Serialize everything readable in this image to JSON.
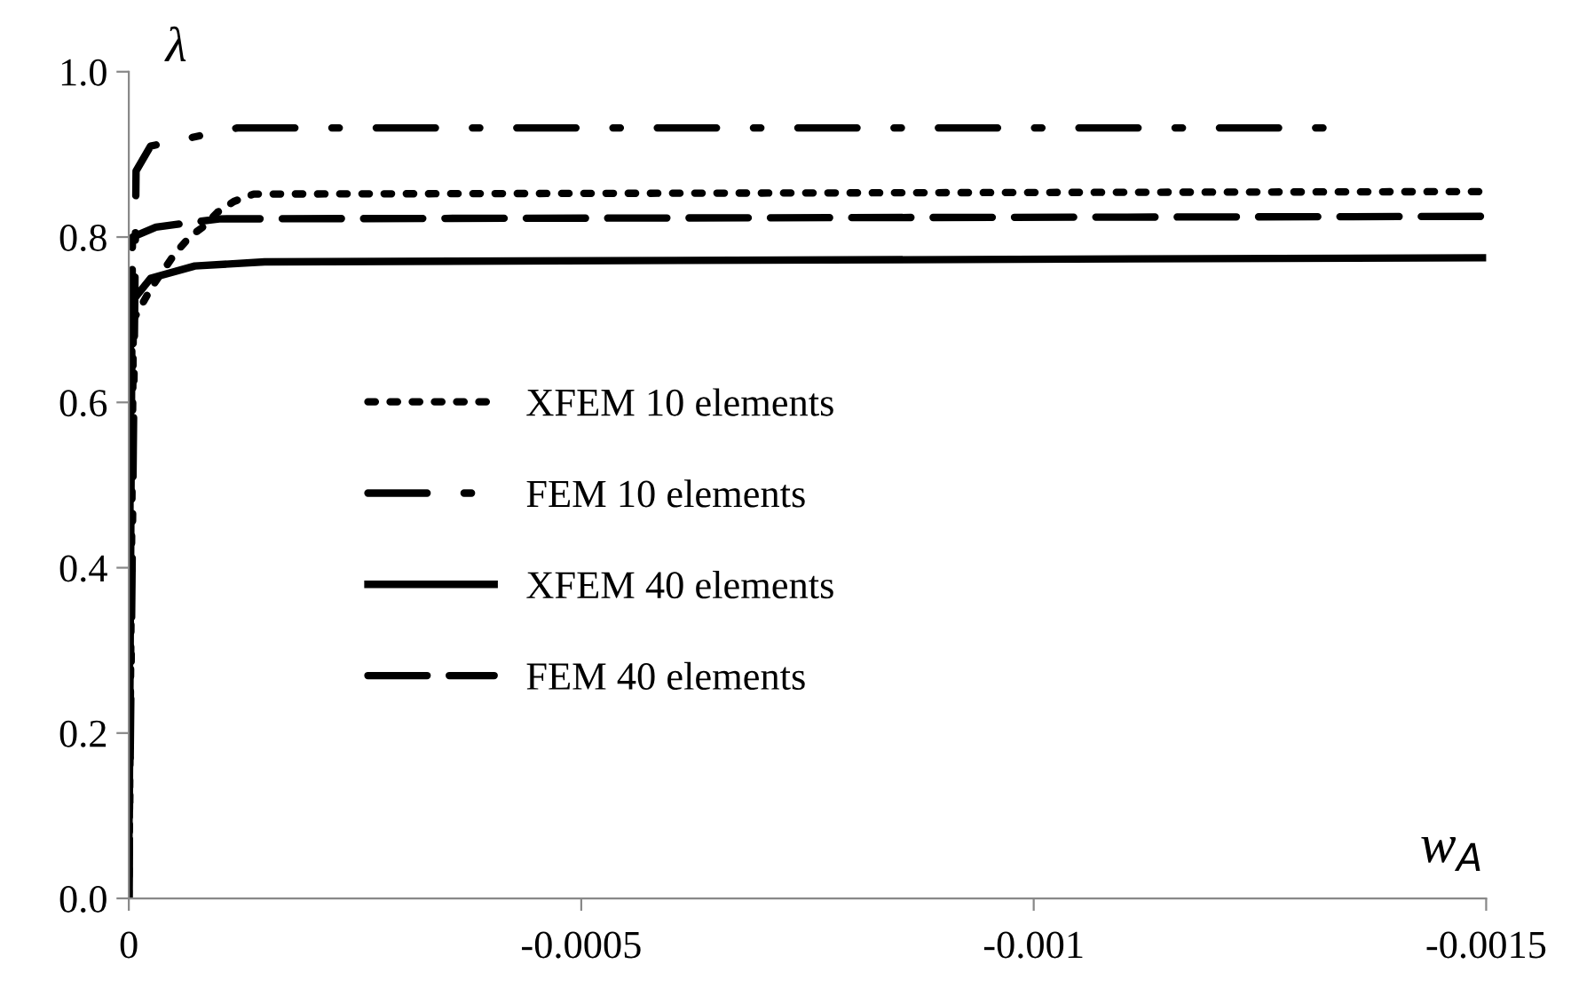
{
  "chart_data": {
    "type": "line",
    "xlabel": "w$_{A}$",
    "ylabel": "λ",
    "xlim": [
      0,
      -0.0015
    ],
    "xticks": [
      0,
      -0.0005,
      -0.001,
      -0.0015
    ],
    "ylim": [
      0,
      1.0
    ],
    "yticks": [
      {
        "value": 0,
        "label": "0.0"
      },
      {
        "value": 0.2,
        "label": "0.2"
      },
      {
        "value": 0.4,
        "label": "0.4"
      },
      {
        "value": 0.6,
        "label": "0.6"
      },
      {
        "value": 0.8,
        "label": "0.8"
      },
      {
        "value": 1.0,
        "label": "1.0"
      }
    ],
    "grid": false,
    "legend": "left",
    "marker": "none",
    "series": [
      {
        "name": "XFEM 10 elements",
        "color": "#000000",
        "line_style": "dotted",
        "x": [
          0,
          -5e-06,
          -2.56e-05,
          -5.1e-05,
          -6.7e-05,
          -8.3e-05,
          -9.8e-05,
          -0.000116,
          -0.000138,
          -0.0015
        ],
        "values": [
          0,
          0.7,
          0.74,
          0.78,
          0.8,
          0.813,
          0.83,
          0.843,
          0.852,
          0.855
        ]
      },
      {
        "name": "FEM 10 elements",
        "color": "#000000",
        "line_style": "dashdot",
        "x": [
          0,
          -8e-06,
          -2.4e-05,
          -0.00012,
          -0.00133
        ],
        "values": [
          0,
          0.88,
          0.91,
          0.932,
          0.932
        ]
      },
      {
        "name": "XFEM 40 elements",
        "color": "#000000",
        "line_style": "solid",
        "x": [
          0,
          -2e-06,
          -2.4e-05,
          -7.3e-05,
          -0.00015,
          -0.0015
        ],
        "values": [
          0,
          0.72,
          0.75,
          0.765,
          0.77,
          0.775
        ]
      },
      {
        "name": "FEM 40 elements",
        "color": "#000000",
        "line_style": "dashed",
        "x": [
          0,
          -4e-06,
          -3e-05,
          -0.0001,
          -0.0015
        ],
        "values": [
          0,
          0.8,
          0.812,
          0.822,
          0.825
        ]
      }
    ]
  }
}
